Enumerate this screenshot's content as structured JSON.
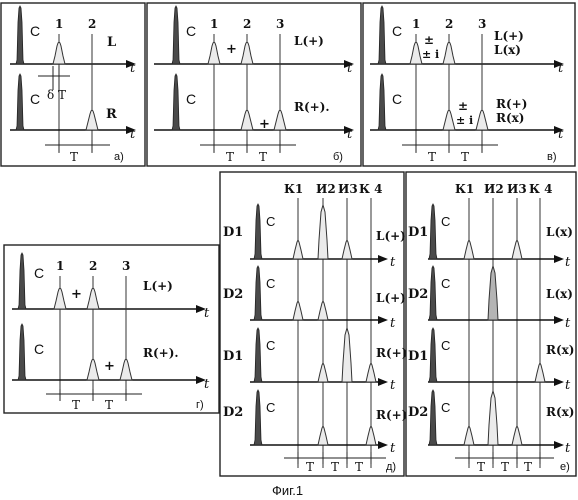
{
  "caption": "Фиг.1",
  "labels": {
    "c": "С",
    "t": "t",
    "T": "T",
    "dT": "δ T",
    "plus": "+",
    "pm": "±",
    "pmi": "± i",
    "plusi": "+ i",
    "n1": "1",
    "n2": "2",
    "n3": "3",
    "k1": "К1",
    "i2": "И2",
    "i3": "И3",
    "k4": "К 4",
    "D1": "D1",
    "D2": "D2"
  },
  "panels": {
    "a": {
      "tag": "а)",
      "row1": "L",
      "row2": "R"
    },
    "b": {
      "tag": "б)",
      "row1": "L(+)",
      "row2": "R(+)."
    },
    "v": {
      "tag": "в)",
      "row1a": "L(+)",
      "row1b": "L(x)",
      "row2a": "R(+)",
      "row2b": "R(x)"
    },
    "g": {
      "tag": "г)",
      "row1": "L(+)",
      "row2": "R(+)."
    },
    "d": {
      "tag": "д)",
      "rows": [
        "L(+)",
        "L(+)",
        "R(+)",
        "R(+)"
      ]
    },
    "e": {
      "tag": "е)",
      "rows": [
        "L(x)",
        "L(x)",
        "R(x)",
        "R(x)"
      ]
    }
  }
}
